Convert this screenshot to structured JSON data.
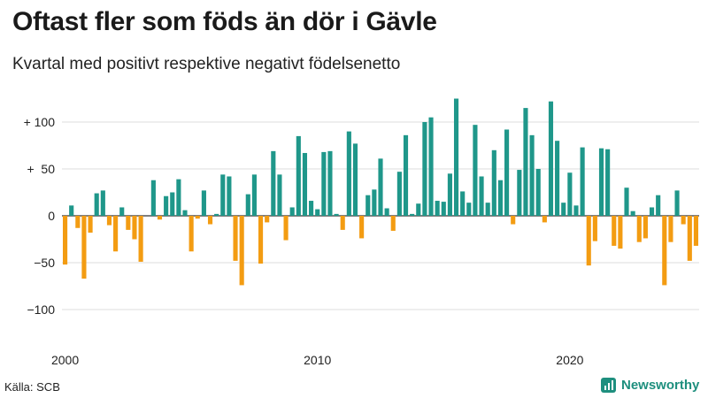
{
  "title": "Oftast fler som föds än dör i Gävle",
  "subtitle": "Kvartal med positivt respektive negativt födelsenetto",
  "source": "Källa: SCB",
  "brand": {
    "name": "Newsworthy",
    "icon": "newsworthy-logo-icon"
  },
  "colors": {
    "positive": "#1f978a",
    "negative": "#f39c12",
    "grid": "#dddddd",
    "zero": "#333333"
  },
  "chart_data": {
    "type": "bar",
    "title": "Oftast fler som föds än dör i Gävle",
    "subtitle": "Kvartal med positivt respektive negativt födelsenetto",
    "xlabel": "",
    "ylabel": "",
    "ylim": [
      -125,
      130
    ],
    "y_ticks": [
      {
        "value": 100,
        "label": "+ 100"
      },
      {
        "value": 50,
        "label": "+  50"
      },
      {
        "value": 0,
        "label": "0"
      },
      {
        "value": -50,
        "label": "−50"
      },
      {
        "value": -100,
        "label": "−100"
      }
    ],
    "x_ticks": [
      "2000",
      "2010",
      "2020"
    ],
    "grid": true,
    "categories": [
      "2000 Q1",
      "2000 Q2",
      "2000 Q3",
      "2000 Q4",
      "2001 Q1",
      "2001 Q2",
      "2001 Q3",
      "2001 Q4",
      "2002 Q1",
      "2002 Q2",
      "2002 Q3",
      "2002 Q4",
      "2003 Q1",
      "2003 Q2",
      "2003 Q3",
      "2003 Q4",
      "2004 Q1",
      "2004 Q2",
      "2004 Q3",
      "2004 Q4",
      "2005 Q1",
      "2005 Q2",
      "2005 Q3",
      "2005 Q4",
      "2006 Q1",
      "2006 Q2",
      "2006 Q3",
      "2006 Q4",
      "2007 Q1",
      "2007 Q2",
      "2007 Q3",
      "2007 Q4",
      "2008 Q1",
      "2008 Q2",
      "2008 Q3",
      "2008 Q4",
      "2009 Q1",
      "2009 Q2",
      "2009 Q3",
      "2009 Q4",
      "2010 Q1",
      "2010 Q2",
      "2010 Q3",
      "2010 Q4",
      "2011 Q1",
      "2011 Q2",
      "2011 Q3",
      "2011 Q4",
      "2012 Q1",
      "2012 Q2",
      "2012 Q3",
      "2012 Q4",
      "2013 Q1",
      "2013 Q2",
      "2013 Q3",
      "2013 Q4",
      "2014 Q1",
      "2014 Q2",
      "2014 Q3",
      "2014 Q4",
      "2015 Q1",
      "2015 Q2",
      "2015 Q3",
      "2015 Q4",
      "2016 Q1",
      "2016 Q2",
      "2016 Q3",
      "2016 Q4",
      "2017 Q1",
      "2017 Q2",
      "2017 Q3",
      "2017 Q4",
      "2018 Q1",
      "2018 Q2",
      "2018 Q3",
      "2018 Q4",
      "2019 Q1",
      "2019 Q2",
      "2019 Q3",
      "2019 Q4",
      "2020 Q1",
      "2020 Q2",
      "2020 Q3",
      "2020 Q4",
      "2021 Q1",
      "2021 Q2",
      "2021 Q3",
      "2021 Q4",
      "2022 Q1",
      "2022 Q2",
      "2022 Q3",
      "2022 Q4",
      "2023 Q1",
      "2023 Q2",
      "2023 Q3",
      "2023 Q4",
      "2024 Q1",
      "2024 Q2",
      "2024 Q3",
      "2024 Q4",
      "2025 Q1"
    ],
    "values": [
      -52,
      11,
      -13,
      -67,
      -18,
      24,
      27,
      -10,
      -38,
      9,
      -15,
      -25,
      -49,
      0,
      38,
      -4,
      21,
      25,
      39,
      6,
      -38,
      -3,
      27,
      -9,
      2,
      44,
      42,
      -48,
      -74,
      23,
      44,
      -51,
      -7,
      69,
      44,
      -26,
      9,
      85,
      67,
      16,
      7,
      68,
      69,
      2,
      -15,
      90,
      77,
      -24,
      22,
      28,
      61,
      8,
      -16,
      47,
      86,
      2,
      13,
      100,
      105,
      16,
      15,
      45,
      125,
      26,
      14,
      97,
      42,
      14,
      70,
      38,
      92,
      -9,
      49,
      115,
      86,
      50,
      -7,
      122,
      80,
      14,
      46,
      11,
      73,
      -53,
      -27,
      72,
      71,
      -32,
      -35,
      30,
      5,
      -28,
      -24,
      9,
      22,
      -74,
      -28,
      27,
      -9,
      -48,
      -32
    ]
  }
}
